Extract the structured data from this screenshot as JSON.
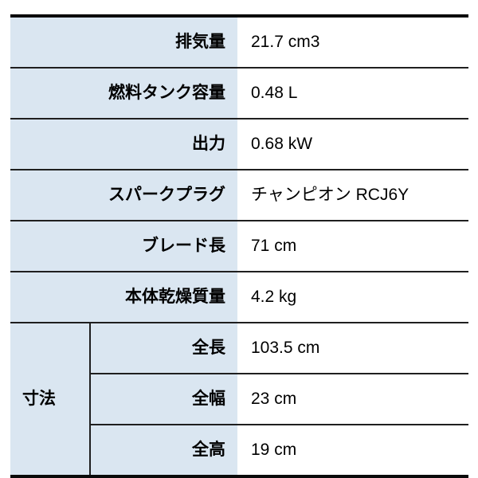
{
  "spec_table": {
    "rows": [
      {
        "label": "排気量",
        "value": "21.7 cm3"
      },
      {
        "label": "燃料タンク容量",
        "value": "0.48 L"
      },
      {
        "label": "出力",
        "value": "0.68 kW"
      },
      {
        "label": "スパークプラグ",
        "value": "チャンピオン RCJ6Y"
      },
      {
        "label": "ブレード長",
        "value": "71 cm"
      },
      {
        "label": "本体乾燥質量",
        "value": "4.2 kg"
      }
    ],
    "dimension_group": {
      "label": "寸法",
      "rows": [
        {
          "label": "全長",
          "value": "103.5 cm"
        },
        {
          "label": "全幅",
          "value": "23 cm"
        },
        {
          "label": "全高",
          "value": "19 cm"
        }
      ]
    }
  },
  "colors": {
    "header_bg": "#dae6f1",
    "border_thick": "#0a0a0a",
    "border_thin": "#1f1f1f",
    "text": "#000000"
  }
}
